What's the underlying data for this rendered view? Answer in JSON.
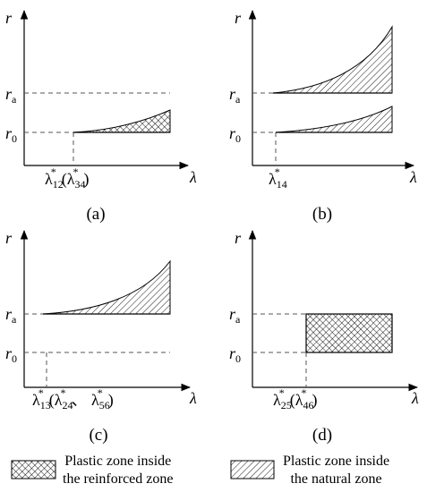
{
  "axis": {
    "y_symbol": "r",
    "x_symbol": "λ"
  },
  "levels": {
    "ra": {
      "base": "r",
      "sub": "a"
    },
    "r0": {
      "base": "r",
      "sub": "0"
    }
  },
  "panels": [
    {
      "id": "a",
      "caption": "(a)",
      "tick": {
        "main": "λ",
        "sub": "12",
        "sup": "*",
        "rest_open": "(",
        "rest_main": "λ",
        "rest_sub": "34",
        "rest_sup": "*",
        "rest_close": ")"
      }
    },
    {
      "id": "b",
      "caption": "(b)",
      "tick": {
        "main": "λ",
        "sub": "14",
        "sup": "*"
      }
    },
    {
      "id": "c",
      "caption": "(c)",
      "tick": {
        "main": "λ",
        "sub": "13",
        "sup": "*",
        "text2": "(λ",
        "sub2": "24",
        "sup2": "*",
        "text3": "、 λ",
        "sub3": "56",
        "sup3": "*",
        "close": ")"
      }
    },
    {
      "id": "d",
      "caption": "(d)",
      "tick": {
        "main": "λ",
        "sub": "25",
        "sup": "*",
        "text2": "(λ",
        "sub2": "46",
        "sup2": "*",
        "close": ")"
      }
    }
  ],
  "legend": {
    "reinforced": {
      "line1": "Plastic zone inside",
      "line2": "the reinforced zone",
      "pattern": "crosshatch"
    },
    "natural": {
      "line1": "Plastic zone inside",
      "line2": "the natural zone",
      "pattern": "diagonal-hatch"
    }
  }
}
